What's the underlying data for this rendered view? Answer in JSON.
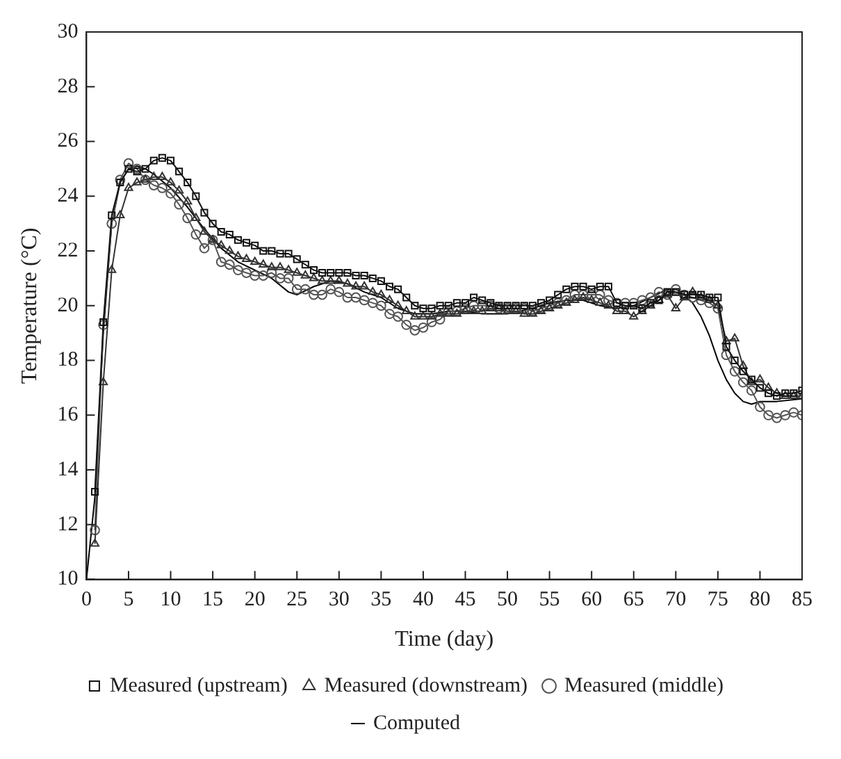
{
  "chart_data": {
    "type": "line",
    "xlabel": "Time (day)",
    "ylabel": "Temperature (°C)",
    "xlim": [
      0,
      85
    ],
    "xticks": [
      0,
      5,
      10,
      15,
      20,
      25,
      30,
      35,
      40,
      45,
      50,
      55,
      60,
      65,
      70,
      75,
      80,
      85
    ],
    "ylim": [
      10,
      30
    ],
    "yticks": [
      10,
      12,
      14,
      16,
      18,
      20,
      22,
      24,
      26,
      28,
      30
    ],
    "grid": false,
    "legend": "bottom",
    "line_style": "solid",
    "x": [
      1,
      2,
      3,
      4,
      5,
      6,
      7,
      8,
      9,
      10,
      11,
      12,
      13,
      14,
      15,
      16,
      17,
      18,
      19,
      20,
      21,
      22,
      23,
      24,
      25,
      26,
      27,
      28,
      29,
      30,
      31,
      32,
      33,
      34,
      35,
      36,
      37,
      38,
      39,
      40,
      41,
      42,
      43,
      44,
      45,
      46,
      47,
      48,
      49,
      50,
      51,
      52,
      53,
      54,
      55,
      56,
      57,
      58,
      59,
      60,
      61,
      62,
      63,
      64,
      65,
      66,
      67,
      68,
      69,
      70,
      71,
      72,
      73,
      74,
      75,
      76,
      77,
      78,
      79,
      80,
      81,
      82,
      83,
      84,
      85
    ],
    "series": [
      {
        "name": "Measured (upstream)",
        "color": "#111111",
        "marker": "square",
        "values": [
          13.2,
          19.4,
          23.3,
          24.5,
          25.0,
          24.9,
          25.0,
          25.3,
          25.4,
          25.3,
          24.9,
          24.5,
          24.0,
          23.4,
          23.0,
          22.7,
          22.6,
          22.4,
          22.3,
          22.2,
          22.0,
          22.0,
          21.9,
          21.9,
          21.7,
          21.5,
          21.3,
          21.2,
          21.2,
          21.2,
          21.2,
          21.1,
          21.1,
          21.0,
          20.9,
          20.7,
          20.6,
          20.3,
          20.0,
          19.9,
          19.9,
          20.0,
          20.0,
          20.1,
          20.1,
          20.3,
          20.2,
          20.1,
          20.0,
          20.0,
          20.0,
          20.0,
          20.0,
          20.1,
          20.2,
          20.4,
          20.6,
          20.7,
          20.7,
          20.6,
          20.7,
          20.7,
          20.1,
          20.0,
          20.0,
          19.9,
          20.1,
          20.2,
          20.5,
          20.5,
          20.4,
          20.4,
          20.4,
          20.3,
          20.3,
          18.5,
          18.0,
          17.6,
          17.3,
          17.0,
          16.8,
          16.7,
          16.8,
          16.8,
          16.9
        ]
      },
      {
        "name": "Measured (downstream)",
        "color": "#333333",
        "marker": "triangle",
        "values": [
          11.3,
          17.2,
          21.3,
          23.3,
          24.3,
          24.5,
          24.6,
          24.7,
          24.7,
          24.5,
          24.2,
          23.8,
          23.2,
          22.7,
          22.4,
          22.2,
          22.0,
          21.8,
          21.7,
          21.6,
          21.5,
          21.4,
          21.4,
          21.3,
          21.2,
          21.1,
          21.0,
          20.9,
          20.9,
          20.9,
          20.8,
          20.7,
          20.7,
          20.5,
          20.4,
          20.2,
          20.0,
          19.8,
          19.6,
          19.6,
          19.6,
          19.7,
          19.7,
          19.7,
          19.8,
          19.8,
          19.8,
          19.9,
          19.9,
          19.8,
          19.8,
          19.7,
          19.7,
          19.8,
          19.9,
          20.0,
          20.1,
          20.2,
          20.3,
          20.2,
          20.1,
          20.0,
          19.8,
          19.8,
          19.6,
          19.8,
          20.0,
          20.2,
          20.4,
          19.9,
          20.3,
          20.5,
          20.3,
          20.2,
          20.0,
          18.7,
          18.8,
          17.8,
          17.2,
          17.3,
          17.0,
          16.8,
          16.7,
          16.7,
          16.7
        ]
      },
      {
        "name": "Measured (middle)",
        "color": "#555555",
        "marker": "circle",
        "values": [
          11.8,
          19.3,
          23.0,
          24.6,
          25.2,
          25.0,
          24.6,
          24.4,
          24.3,
          24.1,
          23.7,
          23.2,
          22.6,
          22.1,
          22.4,
          21.6,
          21.5,
          21.3,
          21.2,
          21.1,
          21.1,
          21.2,
          21.0,
          21.0,
          20.6,
          20.6,
          20.4,
          20.4,
          20.6,
          20.5,
          20.3,
          20.3,
          20.2,
          20.1,
          20.0,
          19.7,
          19.6,
          19.3,
          19.1,
          19.2,
          19.4,
          19.5,
          19.8,
          19.8,
          19.9,
          20.0,
          20.0,
          20.0,
          19.9,
          19.9,
          19.9,
          19.9,
          19.8,
          19.9,
          20.0,
          20.1,
          20.2,
          20.4,
          20.4,
          20.4,
          20.4,
          20.2,
          20.1,
          20.1,
          20.1,
          20.2,
          20.3,
          20.5,
          20.4,
          20.6,
          20.4,
          20.3,
          20.2,
          20.1,
          19.9,
          18.2,
          17.6,
          17.2,
          16.9,
          16.3,
          16.0,
          15.9,
          16.0,
          16.1,
          16.0
        ]
      },
      {
        "name": "Computed",
        "color": "#000000",
        "marker": "none",
        "x": [
          0,
          1,
          2,
          3,
          4,
          5,
          6,
          7,
          8,
          10,
          12,
          14,
          16,
          18,
          20,
          22,
          24,
          25,
          27,
          29,
          31,
          33,
          35,
          37,
          39,
          41,
          43,
          45,
          47,
          50,
          53,
          55,
          57,
          59,
          61,
          63,
          65,
          67,
          69,
          70,
          71,
          72,
          73,
          74,
          75,
          76,
          77,
          78,
          79,
          80,
          82,
          85
        ],
        "values": [
          10,
          13,
          19,
          23,
          24.5,
          25.0,
          25.1,
          25.0,
          24.8,
          24.3,
          23.6,
          22.8,
          22.1,
          21.6,
          21.3,
          21.0,
          20.5,
          20.4,
          20.7,
          20.9,
          20.8,
          20.5,
          20.3,
          19.9,
          19.7,
          19.7,
          19.8,
          19.8,
          19.7,
          19.7,
          19.9,
          20.1,
          20.2,
          20.2,
          20.0,
          19.9,
          20.0,
          20.3,
          20.6,
          20.6,
          20.4,
          20.1,
          19.6,
          18.9,
          18.0,
          17.3,
          16.8,
          16.5,
          16.4,
          16.5,
          16.5,
          16.6
        ]
      }
    ]
  }
}
